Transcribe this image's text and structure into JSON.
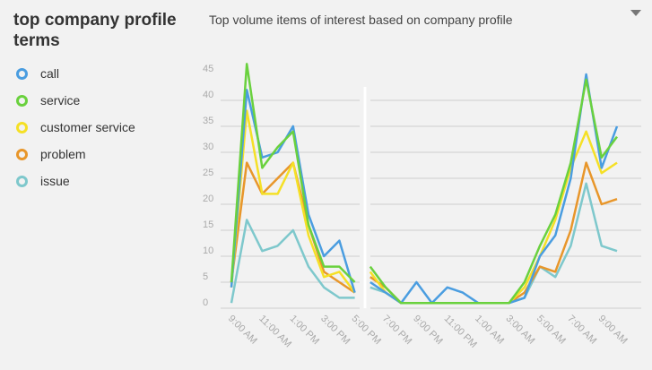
{
  "widget": {
    "title": "top company profile terms",
    "subtitle": "Top volume items of interest based on company profile",
    "menu_icon": "chevron-down-icon"
  },
  "legend": [
    {
      "label": "call",
      "color": "#4a9de0"
    },
    {
      "label": "service",
      "color": "#6ad13e"
    },
    {
      "label": "customer service",
      "color": "#f5e026"
    },
    {
      "label": "problem",
      "color": "#e8962a"
    },
    {
      "label": "issue",
      "color": "#7ec8cc"
    }
  ],
  "chart_data": {
    "type": "line",
    "title": "",
    "xlabel": "",
    "ylabel": "",
    "ylim": [
      0,
      45
    ],
    "yticks": [
      0,
      5,
      10,
      15,
      20,
      25,
      30,
      35,
      40,
      45
    ],
    "x": [
      "9:00 AM",
      "10:00 AM",
      "11:00 AM",
      "12:00 PM",
      "1:00 PM",
      "2:00 PM",
      "3:00 PM",
      "4:00 PM",
      "5:00 PM",
      "6:00 PM",
      "7:00 PM",
      "8:00 PM",
      "9:00 PM",
      "10:00 PM",
      "11:00 PM",
      "12:00 AM",
      "1:00 AM",
      "2:00 AM",
      "3:00 AM",
      "4:00 AM",
      "5:00 AM",
      "6:00 AM",
      "7:00 AM",
      "8:00 AM",
      "9:00 AM",
      "10:00 AM"
    ],
    "xtick_labels": [
      "9:00 AM",
      "11:00 AM",
      "1:00 PM",
      "3:00 PM",
      "5:00 PM",
      "7:00 PM",
      "9:00 PM",
      "11:00 PM",
      "1:00 AM",
      "3:00 AM",
      "5:00 AM",
      "7:00 AM",
      "9:00 AM"
    ],
    "gap_after_index": 8,
    "series": [
      {
        "name": "call",
        "color": "#4a9de0",
        "values": [
          4,
          42,
          29,
          30,
          35,
          18,
          10,
          13,
          3,
          5,
          3,
          1,
          5,
          1,
          4,
          3,
          1,
          1,
          1,
          2,
          10,
          14,
          25,
          45,
          27,
          35
        ]
      },
      {
        "name": "service",
        "color": "#6ad13e",
        "values": [
          5,
          47,
          27,
          31,
          34,
          16,
          8,
          8,
          5,
          8,
          4,
          1,
          1,
          1,
          1,
          1,
          1,
          1,
          1,
          5,
          12,
          18,
          28,
          44,
          29,
          33
        ]
      },
      {
        "name": "customer service",
        "color": "#f5e026",
        "values": [
          4,
          38,
          22,
          22,
          28,
          14,
          6,
          7,
          3,
          7,
          3,
          1,
          1,
          1,
          1,
          1,
          1,
          1,
          1,
          4,
          10,
          17,
          27,
          34,
          26,
          28
        ]
      },
      {
        "name": "problem",
        "color": "#e8962a",
        "values": [
          5,
          28,
          22,
          25,
          28,
          16,
          7,
          5,
          3,
          6,
          4,
          1,
          1,
          1,
          1,
          1,
          1,
          1,
          1,
          3,
          8,
          7,
          15,
          28,
          20,
          21
        ]
      },
      {
        "name": "issue",
        "color": "#7ec8cc",
        "values": [
          1,
          17,
          11,
          12,
          15,
          8,
          4,
          2,
          2,
          4,
          3,
          1,
          1,
          1,
          1,
          1,
          1,
          1,
          1,
          2,
          8,
          6,
          12,
          24,
          12,
          11
        ]
      }
    ]
  }
}
